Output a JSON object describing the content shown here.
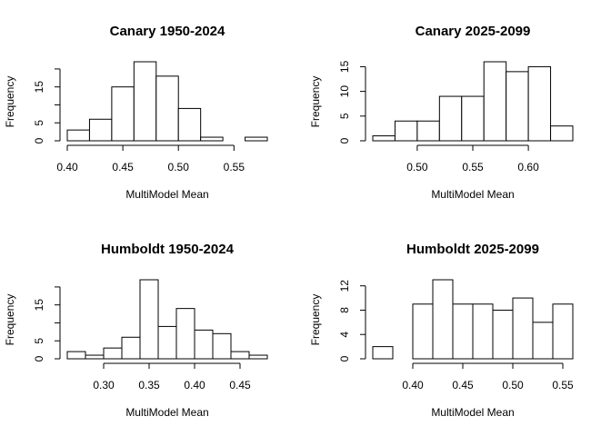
{
  "chart_data": [
    {
      "type": "histogram",
      "title": "Canary 1950-2024",
      "xlabel": "MultiModel Mean",
      "ylabel": "Frequency",
      "bins": [
        0.4,
        0.42,
        0.44,
        0.46,
        0.48,
        0.5,
        0.52,
        0.54,
        0.56,
        0.58
      ],
      "values": [
        3,
        6,
        15,
        22,
        18,
        9,
        1,
        0,
        1
      ],
      "xlim": [
        0.4,
        0.58
      ],
      "ylim": [
        0,
        22
      ],
      "xticks": [
        {
          "value": 0.4,
          "label": "0.40"
        },
        {
          "value": 0.45,
          "label": "0.45"
        },
        {
          "value": 0.5,
          "label": "0.50"
        },
        {
          "value": 0.55,
          "label": "0.55"
        }
      ],
      "yticks": [
        0,
        5,
        15
      ],
      "ytick_marks": [
        0,
        5,
        10,
        15,
        20
      ],
      "color": "#ffffff"
    },
    {
      "type": "histogram",
      "title": "Canary 2025-2099",
      "xlabel": "MultiModel Mean",
      "ylabel": "Frequency",
      "bins": [
        0.46,
        0.48,
        0.5,
        0.52,
        0.54,
        0.56,
        0.58,
        0.6,
        0.62,
        0.64
      ],
      "values": [
        1,
        4,
        4,
        9,
        9,
        16,
        14,
        15,
        3
      ],
      "xlim": [
        0.46,
        0.64
      ],
      "ylim": [
        0,
        16
      ],
      "xticks": [
        {
          "value": 0.5,
          "label": "0.50"
        },
        {
          "value": 0.55,
          "label": "0.55"
        },
        {
          "value": 0.6,
          "label": "0.60"
        }
      ],
      "yticks": [
        0,
        5,
        10,
        15
      ],
      "ytick_marks": [
        0,
        5,
        10,
        15
      ],
      "color": "#ffffff"
    },
    {
      "type": "histogram",
      "title": "Humboldt 1950-2024",
      "xlabel": "MultiModel Mean",
      "ylabel": "Frequency",
      "bins": [
        0.26,
        0.28,
        0.3,
        0.32,
        0.34,
        0.36,
        0.38,
        0.4,
        0.42,
        0.44,
        0.46,
        0.48
      ],
      "values": [
        2,
        1,
        3,
        6,
        22,
        9,
        14,
        8,
        7,
        2,
        1
      ],
      "xlim": [
        0.26,
        0.48
      ],
      "ylim": [
        0,
        22
      ],
      "xticks": [
        {
          "value": 0.3,
          "label": "0.30"
        },
        0.35,
        {
          "value": 0.4,
          "label": "0.40"
        },
        0.45
      ],
      "yticks": [
        0,
        5,
        15
      ],
      "ytick_marks": [
        0,
        5,
        10,
        15,
        20
      ],
      "color": "#ffffff"
    },
    {
      "type": "histogram",
      "title": "Humboldt 2025-2099",
      "xlabel": "MultiModel Mean",
      "ylabel": "Frequency",
      "bins": [
        0.36,
        0.38,
        0.4,
        0.42,
        0.44,
        0.46,
        0.48,
        0.5,
        0.52,
        0.54,
        0.56
      ],
      "values": [
        2,
        0,
        9,
        13,
        9,
        9,
        8,
        10,
        6,
        9
      ],
      "xlim": [
        0.36,
        0.56
      ],
      "ylim": [
        0,
        13
      ],
      "xticks": [
        {
          "value": 0.4,
          "label": "0.40"
        },
        0.45,
        {
          "value": 0.5,
          "label": "0.50"
        },
        0.55
      ],
      "yticks": [
        0,
        4,
        8,
        12
      ],
      "ytick_marks": [
        0,
        4,
        8,
        12
      ],
      "color": "#ffffff"
    }
  ]
}
